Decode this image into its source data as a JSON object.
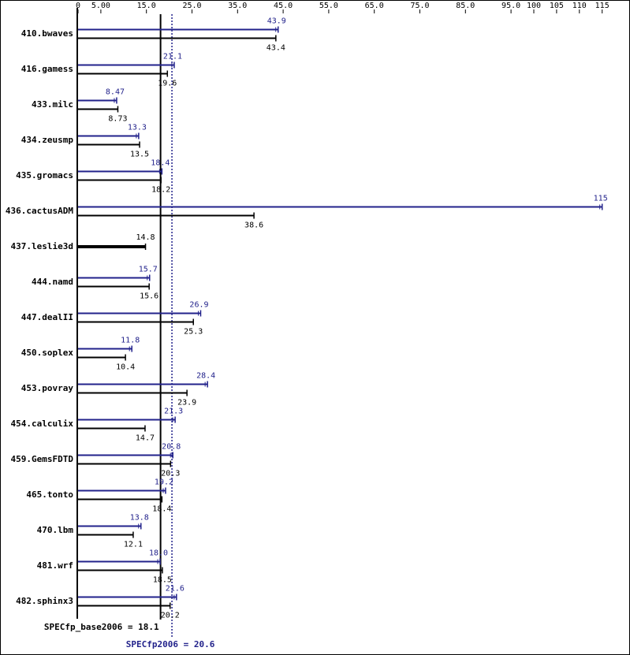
{
  "chart_data": {
    "type": "bar",
    "orientation": "horizontal",
    "categories": [
      "410.bwaves",
      "416.gamess",
      "433.milc",
      "434.zeusmp",
      "435.gromacs",
      "436.cactusADM",
      "437.leslie3d",
      "444.namd",
      "447.dealII",
      "450.soplex",
      "453.povray",
      "454.calculix",
      "459.GemsFDTD",
      "465.tonto",
      "470.lbm",
      "481.wrf",
      "482.sphinx3"
    ],
    "series": [
      {
        "color": "#22228b",
        "values": [
          43.9,
          21.1,
          8.47,
          13.3,
          18.4,
          115,
          null,
          15.7,
          26.9,
          11.8,
          28.4,
          21.3,
          20.8,
          19.2,
          13.8,
          18.0,
          21.6
        ],
        "value_labels": [
          "43.9",
          "21.1",
          "8.47",
          "13.3",
          "18.4",
          "115",
          null,
          "15.7",
          "26.9",
          "11.8",
          "28.4",
          "21.3",
          "20.8",
          "19.2",
          "13.8",
          "18.0",
          "21.6"
        ]
      },
      {
        "color": "#000000",
        "values": [
          43.4,
          19.6,
          8.73,
          13.5,
          18.2,
          38.6,
          14.8,
          15.6,
          25.3,
          10.4,
          23.9,
          14.7,
          20.3,
          18.4,
          12.1,
          18.5,
          20.2
        ],
        "value_labels": [
          "43.4",
          "19.6",
          "8.73",
          "13.5",
          "18.2",
          "38.6",
          "14.8",
          "15.6",
          "25.3",
          "10.4",
          "23.9",
          "14.7",
          "20.3",
          "18.4",
          "12.1",
          "18.5",
          "20.2"
        ]
      }
    ],
    "xlim": [
      0,
      120
    ],
    "xticks": [
      0,
      {
        "value": 5,
        "label": "5.00"
      },
      {
        "value": 15,
        "label": "15.0"
      },
      {
        "value": 25,
        "label": "25.0"
      },
      {
        "value": 35,
        "label": "35.0"
      },
      {
        "value": 45,
        "label": "45.0"
      },
      {
        "value": 55,
        "label": "55.0"
      },
      {
        "value": 65,
        "label": "65.0"
      },
      {
        "value": 75,
        "label": "75.0"
      },
      {
        "value": 85,
        "label": "85.0"
      },
      {
        "value": 95,
        "label": "95.0"
      },
      100,
      105,
      110,
      115
    ],
    "reference_lines": [
      {
        "text": "SPECfp_base2006 = 18.1",
        "value": 18.1,
        "color": "#000000",
        "style": "solid"
      },
      {
        "text": "SPECfp2006 = 20.6",
        "value": 20.6,
        "color": "#22228b",
        "style": "dotted"
      }
    ]
  }
}
